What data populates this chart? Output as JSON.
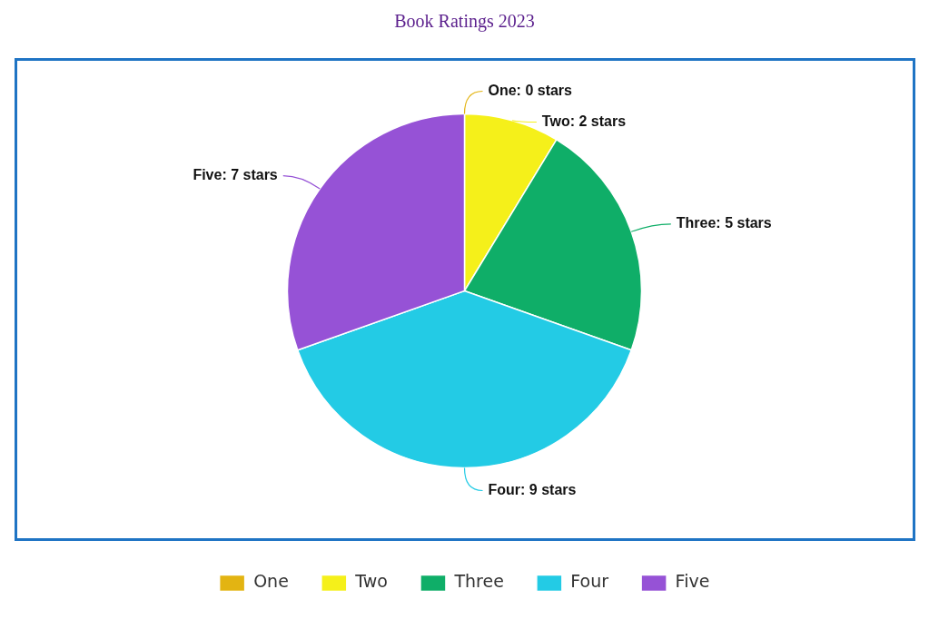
{
  "chart_data": {
    "type": "pie",
    "title": "Book Ratings 2023",
    "categories": [
      "One",
      "Two",
      "Three",
      "Four",
      "Five"
    ],
    "values": [
      0,
      2,
      5,
      9,
      7
    ],
    "colors": [
      "#e3b412",
      "#f5f01a",
      "#0fae68",
      "#23cbe5",
      "#9652d6"
    ],
    "value_labels": [
      "One: 0 stars",
      "Two: 2 stars",
      "Three: 5 stars",
      "Four: 9 stars",
      "Five: 7 stars"
    ],
    "legend": "bottom"
  }
}
